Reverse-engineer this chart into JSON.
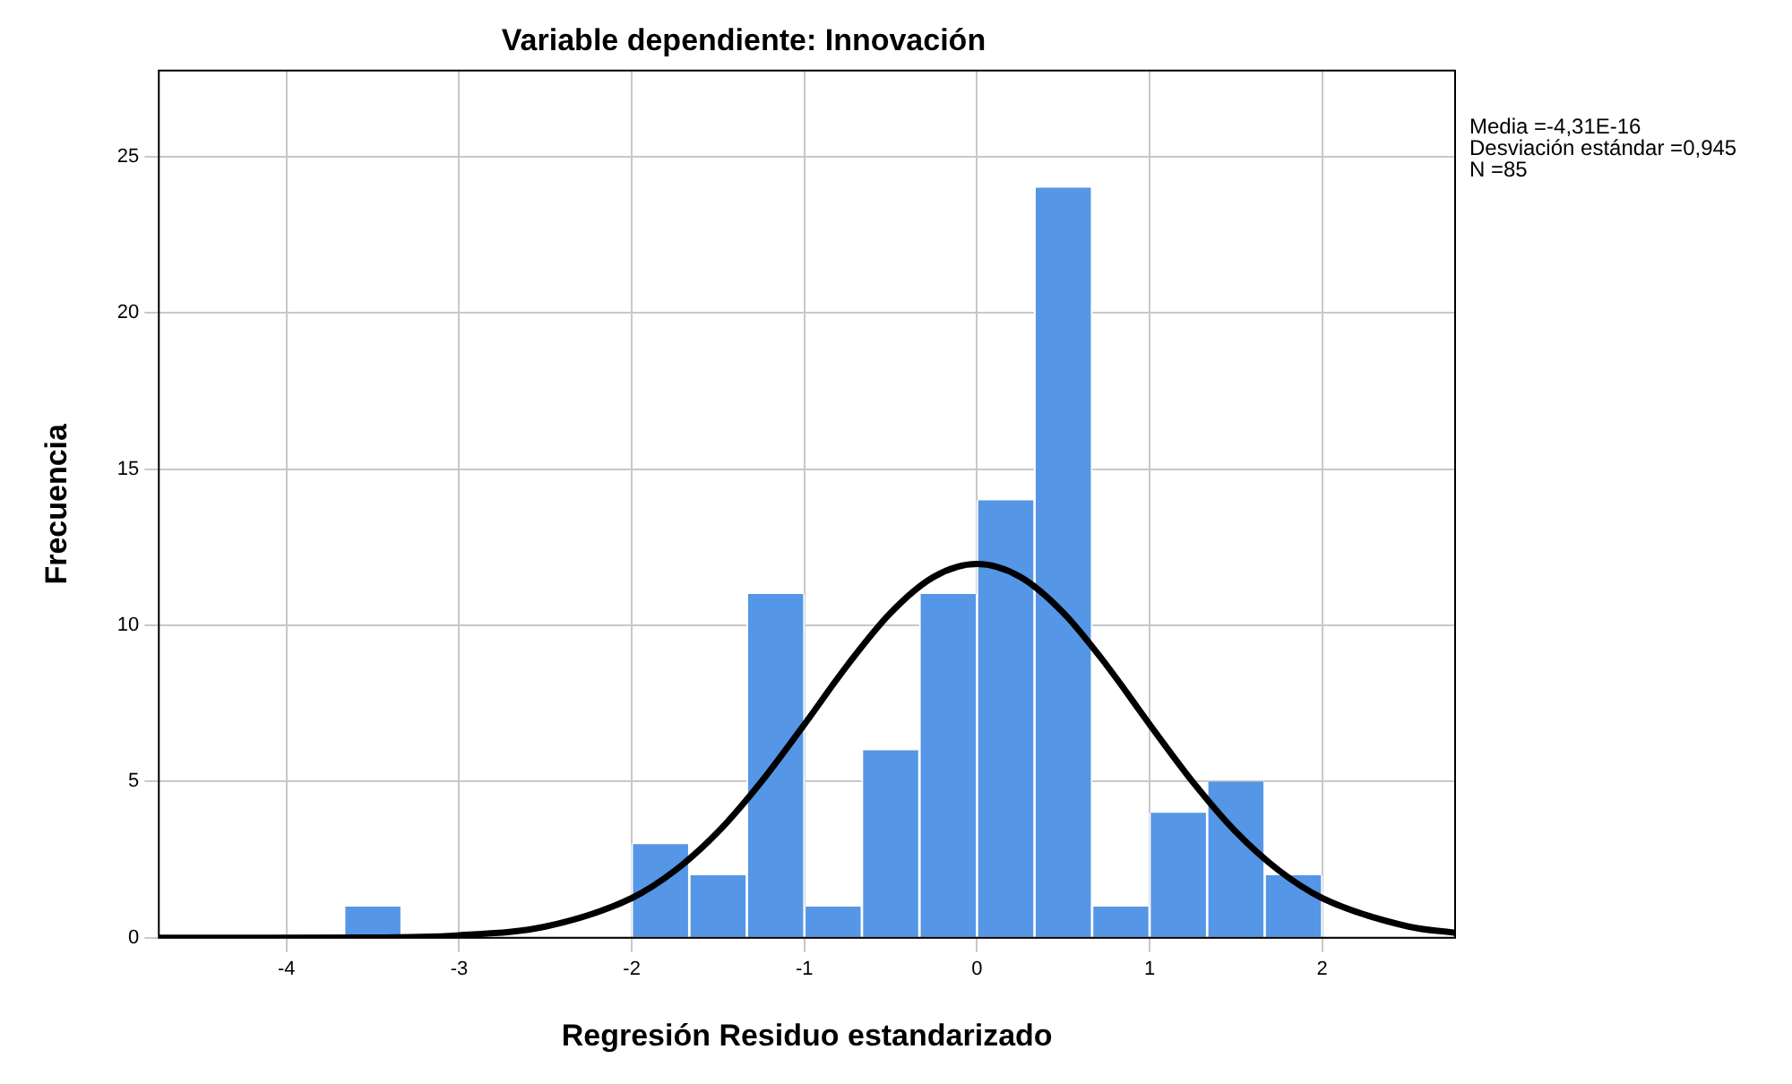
{
  "chart_data": {
    "type": "histogram",
    "title": "Variable dependiente: Innovación",
    "xlabel": "Regresión Residuo estandarizado",
    "ylabel": "Frecuencia",
    "bins": [
      -3.667,
      -3.333,
      -3,
      -2.667,
      -2.333,
      -2,
      -1.667,
      -1.333,
      -1,
      -0.667,
      -0.333,
      0,
      0.333,
      0.667,
      1,
      1.333,
      1.667,
      2
    ],
    "values": [
      1,
      0,
      0,
      0,
      0,
      3,
      2,
      11,
      1,
      6,
      11,
      14,
      24,
      1,
      4,
      5,
      2
    ],
    "color": "#5596e6",
    "series": [
      {
        "type": "line",
        "color": "#000000",
        "x": [
          -4.74,
          -4.5,
          -3.5,
          -3,
          -2.5,
          -2,
          -1.75,
          -1.5,
          -1.25,
          -1,
          -0.75,
          -0.5,
          -0.25,
          0,
          0.25,
          0.5,
          0.75,
          1,
          1.25,
          1.5,
          1.75,
          2,
          2.5,
          2.77
        ],
        "values": [
          0,
          0,
          0.01,
          0.08,
          0.36,
          1.27,
          2.15,
          3.39,
          4.99,
          6.83,
          8.73,
          10.4,
          11.55,
          11.96,
          11.55,
          10.4,
          8.73,
          6.83,
          4.99,
          3.39,
          2.15,
          1.27,
          0.36,
          0.16
        ]
      }
    ],
    "xlim": [
      -4.74,
      2.77
    ],
    "xticks": [
      -4,
      -3,
      -2,
      -1,
      0,
      1,
      2
    ],
    "ylim": [
      0,
      27.75
    ],
    "yticks": [
      0,
      5,
      10,
      15,
      20,
      25
    ],
    "grid": true,
    "legend": false,
    "marker": "none",
    "annotations": [
      "Media =-4,31E-16",
      "Desviación estándar =0,945",
      "N =85"
    ]
  }
}
